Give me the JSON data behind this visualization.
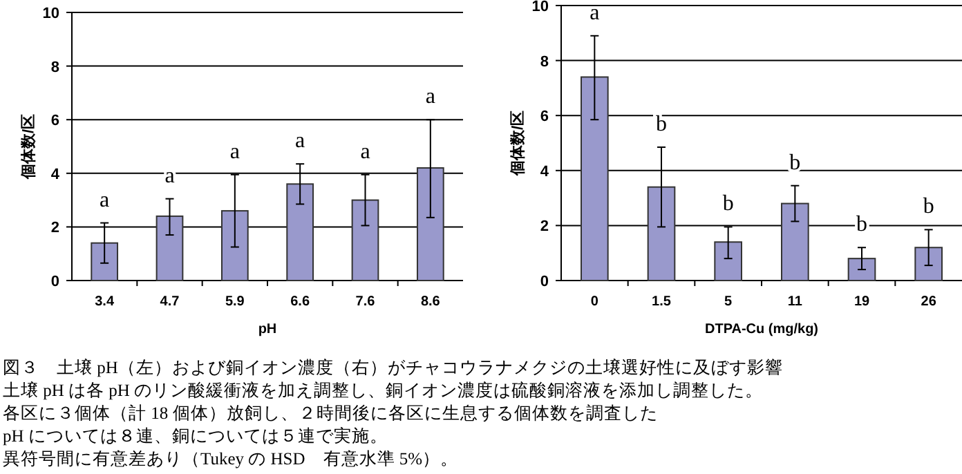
{
  "chart_data": [
    {
      "type": "bar",
      "xlabel": "pH",
      "ylabel": "個体数/区",
      "categories": [
        "3.4",
        "4.7",
        "5.9",
        "6.6",
        "7.6",
        "8.6"
      ],
      "values": [
        1.4,
        2.4,
        2.6,
        3.6,
        3.0,
        4.2
      ],
      "color": "#9999cc",
      "errors": [
        [
          0.65,
          2.15
        ],
        [
          1.7,
          3.05
        ],
        [
          1.25,
          3.95
        ],
        [
          2.85,
          4.35
        ],
        [
          2.05,
          3.95
        ],
        [
          2.35,
          6.0
        ]
      ],
      "ylim": [
        0,
        10
      ],
      "yticks": [
        0,
        2,
        4,
        6,
        8,
        10
      ],
      "grid": "y",
      "annotations": [
        "a",
        "a",
        "a",
        "a",
        "a",
        "a",
        "図３　土壌 pH（左）および銅イオン濃度（右）がチャコウラナメクジの土壌選好性に及ぼす影響",
        "土壌 pH は各 pH のリン酸緩衝液を加え調整し、銅イオン濃度は硫酸銅溶液を添加し調整した。",
        "各区に３個体（計 18 個体）放飼し、２時間後に各区に生息する個体数を調査した",
        "pH については８連、銅については５連で実施。",
        "異符号間に有意差あり（Tukey の HSD　有意水準 5%）。"
      ]
    },
    {
      "type": "bar",
      "xlabel": "DTPA-Cu (mg/kg)",
      "ylabel": "個体数/区",
      "categories": [
        "0",
        "1.5",
        "5",
        "11",
        "19",
        "26"
      ],
      "values": [
        7.4,
        3.4,
        1.4,
        2.8,
        0.8,
        1.2
      ],
      "color": "#9999cc",
      "errors": [
        [
          5.85,
          8.9
        ],
        [
          1.95,
          4.85
        ],
        [
          0.8,
          1.95
        ],
        [
          2.15,
          3.45
        ],
        [
          0.4,
          1.2
        ],
        [
          0.55,
          1.85
        ]
      ],
      "ylim": [
        0,
        10
      ],
      "yticks": [
        0,
        2,
        4,
        6,
        8,
        10
      ],
      "grid": "y",
      "annotations": [
        "a",
        "b",
        "b",
        "b",
        "b",
        "b"
      ]
    }
  ]
}
